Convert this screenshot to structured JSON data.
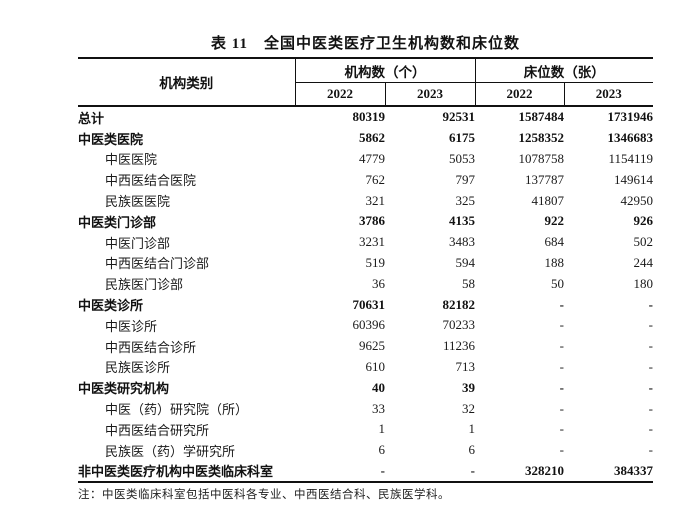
{
  "title": "表 11　全国中医类医疗卫生机构数和床位数",
  "note": "注：中医类临床科室包括中医科各专业、中西医结合科、民族医学科。",
  "table": {
    "header": {
      "category": "机构类别",
      "group1": "机构数（个）",
      "group2": "床位数（张）",
      "years": [
        "2022",
        "2023",
        "2022",
        "2023"
      ]
    },
    "rows": [
      {
        "label": "总计",
        "bold": true,
        "indent": false,
        "values": [
          "80319",
          "92531",
          "1587484",
          "1731946"
        ]
      },
      {
        "label": "中医类医院",
        "bold": true,
        "indent": false,
        "values": [
          "5862",
          "6175",
          "1258352",
          "1346683"
        ]
      },
      {
        "label": "中医医院",
        "bold": false,
        "indent": true,
        "values": [
          "4779",
          "5053",
          "1078758",
          "1154119"
        ]
      },
      {
        "label": "中西医结合医院",
        "bold": false,
        "indent": true,
        "values": [
          "762",
          "797",
          "137787",
          "149614"
        ]
      },
      {
        "label": "民族医医院",
        "bold": false,
        "indent": true,
        "values": [
          "321",
          "325",
          "41807",
          "42950"
        ]
      },
      {
        "label": "中医类门诊部",
        "bold": true,
        "indent": false,
        "values": [
          "3786",
          "4135",
          "922",
          "926"
        ]
      },
      {
        "label": "中医门诊部",
        "bold": false,
        "indent": true,
        "values": [
          "3231",
          "3483",
          "684",
          "502"
        ]
      },
      {
        "label": "中西医结合门诊部",
        "bold": false,
        "indent": true,
        "values": [
          "519",
          "594",
          "188",
          "244"
        ]
      },
      {
        "label": "民族医门诊部",
        "bold": false,
        "indent": true,
        "values": [
          "36",
          "58",
          "50",
          "180"
        ]
      },
      {
        "label": "中医类诊所",
        "bold": true,
        "indent": false,
        "values": [
          "70631",
          "82182",
          "-",
          "-"
        ]
      },
      {
        "label": "中医诊所",
        "bold": false,
        "indent": true,
        "values": [
          "60396",
          "70233",
          "-",
          "-"
        ]
      },
      {
        "label": "中西医结合诊所",
        "bold": false,
        "indent": true,
        "values": [
          "9625",
          "11236",
          "-",
          "-"
        ]
      },
      {
        "label": "民族医诊所",
        "bold": false,
        "indent": true,
        "values": [
          "610",
          "713",
          "-",
          "-"
        ]
      },
      {
        "label": "中医类研究机构",
        "bold": true,
        "indent": false,
        "values": [
          "40",
          "39",
          "-",
          "-"
        ]
      },
      {
        "label": "中医（药）研究院（所）",
        "bold": false,
        "indent": true,
        "values": [
          "33",
          "32",
          "-",
          "-"
        ]
      },
      {
        "label": "中西医结合研究所",
        "bold": false,
        "indent": true,
        "values": [
          "1",
          "1",
          "-",
          "-"
        ]
      },
      {
        "label": "民族医（药）学研究所",
        "bold": false,
        "indent": true,
        "values": [
          "6",
          "6",
          "-",
          "-"
        ]
      },
      {
        "label": "非中医类医疗机构中医类临床科室",
        "bold": true,
        "indent": false,
        "values": [
          "-",
          "-",
          "328210",
          "384337"
        ]
      }
    ]
  }
}
